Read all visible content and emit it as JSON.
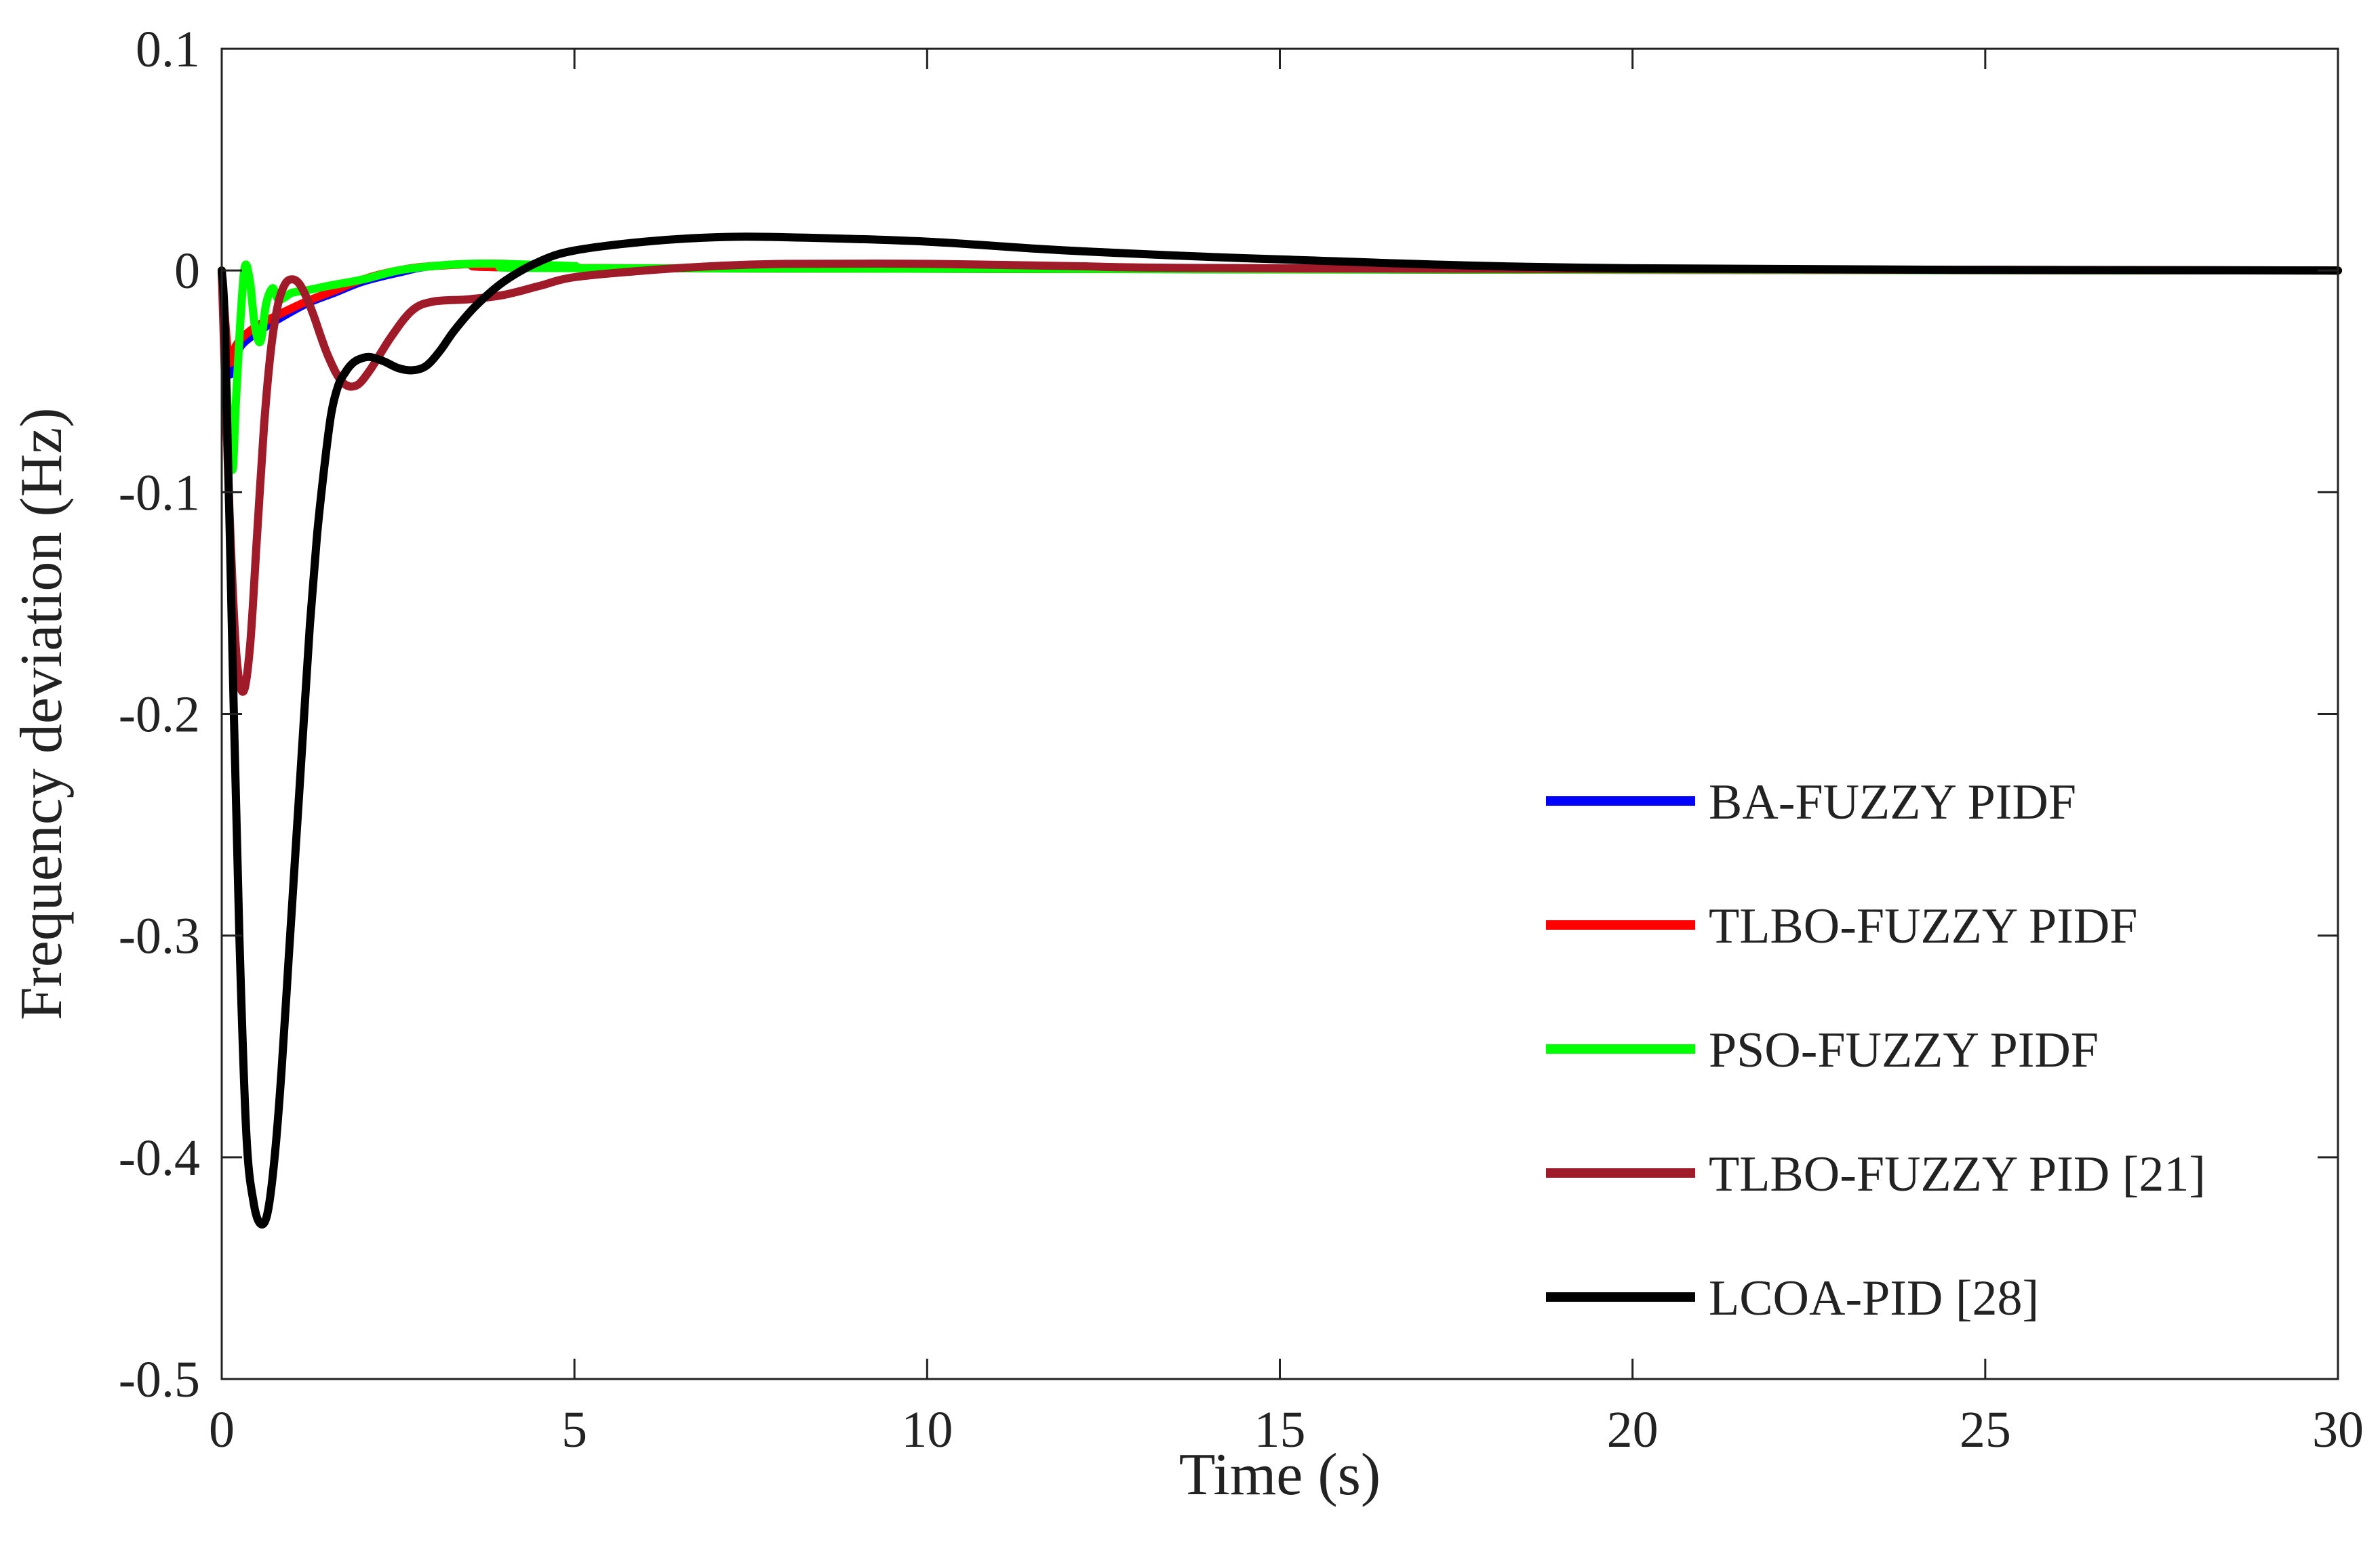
{
  "chart_data": {
    "type": "line",
    "title": "",
    "xlabel": "Time (s)",
    "ylabel": "Frequency deviation (Hz)",
    "xlim": [
      0,
      30
    ],
    "ylim": [
      -0.5,
      0.1
    ],
    "xticks": [
      0,
      5,
      10,
      15,
      20,
      25,
      30
    ],
    "xtick_labels": [
      "0",
      "5",
      "10",
      "15",
      "20",
      "25",
      "30"
    ],
    "yticks": [
      0.1,
      0,
      -0.1,
      -0.2,
      -0.3,
      -0.4,
      -0.5
    ],
    "ytick_labels": [
      "0.1",
      "0",
      "-0.1",
      "-0.2",
      "-0.3",
      "-0.4",
      "-0.5"
    ],
    "grid": false,
    "legend_position": "bottom-right",
    "series": [
      {
        "name": "BA-FUZZY PIDF",
        "color": "#0000ff",
        "x": [
          0,
          0.1,
          0.2,
          0.3,
          0.5,
          0.8,
          1.2,
          1.6,
          2.0,
          2.5,
          3.0,
          4.0,
          6.0,
          30
        ],
        "y": [
          0,
          -0.045,
          -0.038,
          -0.033,
          -0.028,
          -0.022,
          -0.015,
          -0.01,
          -0.005,
          -0.001,
          0.002,
          0.003,
          0.001,
          0
        ]
      },
      {
        "name": "TLBO-FUZZY PIDF",
        "color": "#ff0000",
        "x": [
          0,
          0.1,
          0.2,
          0.3,
          0.5,
          0.8,
          1.2,
          1.6,
          2.0,
          2.5,
          3.0,
          4.0,
          6.0,
          30
        ],
        "y": [
          0,
          -0.04,
          -0.034,
          -0.03,
          -0.025,
          -0.02,
          -0.014,
          -0.009,
          -0.004,
          0.0,
          0.002,
          0.003,
          0.001,
          0
        ]
      },
      {
        "name": "PSO-FUZZY PIDF",
        "color": "#00ff00",
        "x": [
          0,
          0.08,
          0.15,
          0.2,
          0.27,
          0.33,
          0.4,
          0.47,
          0.55,
          0.63,
          0.72,
          0.8,
          0.9,
          1.0,
          1.2,
          1.5,
          2.0,
          2.5,
          3.0,
          3.5,
          4.0,
          5.0,
          6.0,
          30
        ],
        "y": [
          0,
          -0.06,
          -0.09,
          -0.06,
          -0.02,
          0.002,
          -0.005,
          -0.025,
          -0.032,
          -0.015,
          -0.008,
          -0.013,
          -0.012,
          -0.01,
          -0.009,
          -0.007,
          -0.004,
          0.0,
          0.002,
          0.003,
          0.003,
          0.002,
          0.001,
          0
        ]
      },
      {
        "name": "TLBO-FUZZY PID [21]",
        "color": "#a01b2a",
        "x": [
          0,
          0.1,
          0.2,
          0.3,
          0.4,
          0.5,
          0.6,
          0.7,
          0.8,
          0.9,
          1.0,
          1.1,
          1.2,
          1.3,
          1.5,
          1.7,
          1.9,
          2.1,
          2.4,
          2.7,
          3.0,
          3.5,
          4.0,
          4.5,
          5.0,
          6.0,
          7.0,
          8.0,
          10,
          12,
          15,
          30
        ],
        "y": [
          0,
          -0.1,
          -0.17,
          -0.19,
          -0.17,
          -0.12,
          -0.07,
          -0.035,
          -0.015,
          -0.006,
          -0.004,
          -0.006,
          -0.012,
          -0.02,
          -0.038,
          -0.05,
          -0.052,
          -0.045,
          -0.03,
          -0.018,
          -0.014,
          -0.013,
          -0.011,
          -0.007,
          -0.003,
          0.0,
          0.002,
          0.003,
          0.003,
          0.002,
          0.001,
          0
        ]
      },
      {
        "name": "LCOA-PID [28]",
        "color": "#000000",
        "x": [
          0,
          0.05,
          0.15,
          0.25,
          0.35,
          0.45,
          0.55,
          0.65,
          0.75,
          0.85,
          0.95,
          1.05,
          1.15,
          1.25,
          1.35,
          1.45,
          1.55,
          1.65,
          1.75,
          1.85,
          1.95,
          2.1,
          2.3,
          2.5,
          2.7,
          2.9,
          3.1,
          3.3,
          3.6,
          4.0,
          4.5,
          5.0,
          6.0,
          7.0,
          8.0,
          10,
          12,
          15,
          20,
          30
        ],
        "y": [
          0,
          -0.03,
          -0.17,
          -0.3,
          -0.39,
          -0.42,
          -0.43,
          -0.425,
          -0.4,
          -0.36,
          -0.31,
          -0.26,
          -0.21,
          -0.16,
          -0.12,
          -0.09,
          -0.065,
          -0.052,
          -0.046,
          -0.042,
          -0.04,
          -0.039,
          -0.041,
          -0.044,
          -0.045,
          -0.043,
          -0.036,
          -0.027,
          -0.016,
          -0.005,
          0.004,
          0.009,
          0.013,
          0.015,
          0.015,
          0.013,
          0.009,
          0.005,
          0.001,
          0.0
        ]
      }
    ]
  }
}
